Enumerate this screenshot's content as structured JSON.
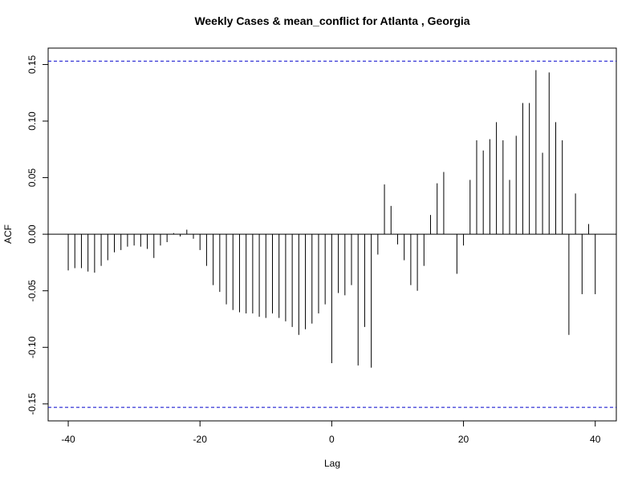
{
  "chart_data": {
    "type": "ccf",
    "title": "Weekly Cases & mean_conflict for Atlanta , Georgia",
    "xlabel": "Lag",
    "ylabel": "ACF",
    "x": [
      -40,
      -39,
      -38,
      -37,
      -36,
      -35,
      -34,
      -33,
      -32,
      -31,
      -30,
      -29,
      -28,
      -27,
      -26,
      -25,
      -24,
      -23,
      -22,
      -21,
      -20,
      -19,
      -18,
      -17,
      -16,
      -15,
      -14,
      -13,
      -12,
      -11,
      -10,
      -9,
      -8,
      -7,
      -6,
      -5,
      -4,
      -3,
      -2,
      -1,
      0,
      1,
      2,
      3,
      4,
      5,
      6,
      7,
      8,
      9,
      10,
      11,
      12,
      13,
      14,
      15,
      16,
      17,
      18,
      19,
      20,
      21,
      22,
      23,
      24,
      25,
      26,
      27,
      28,
      29,
      30,
      31,
      32,
      33,
      34,
      35,
      36,
      37,
      38,
      39,
      40
    ],
    "values": [
      -0.032,
      -0.03,
      -0.03,
      -0.033,
      -0.034,
      -0.028,
      -0.023,
      -0.016,
      -0.014,
      -0.011,
      -0.01,
      -0.011,
      -0.013,
      -0.021,
      -0.01,
      -0.007,
      0.001,
      -0.002,
      0.004,
      -0.004,
      -0.014,
      -0.028,
      -0.045,
      -0.051,
      -0.062,
      -0.067,
      -0.069,
      -0.07,
      -0.07,
      -0.073,
      -0.074,
      -0.07,
      -0.074,
      -0.077,
      -0.082,
      -0.089,
      -0.084,
      -0.079,
      -0.07,
      -0.062,
      -0.114,
      -0.052,
      -0.054,
      -0.045,
      -0.116,
      -0.082,
      -0.118,
      -0.018,
      0.044,
      0.025,
      -0.009,
      -0.023,
      -0.045,
      -0.05,
      -0.028,
      0.017,
      0.045,
      0.055,
      0.0,
      -0.035,
      -0.01,
      0.048,
      0.083,
      0.074,
      0.084,
      0.099,
      0.083,
      0.048,
      0.087,
      0.116,
      0.116,
      0.145,
      0.072,
      0.143,
      0.099,
      0.083,
      -0.089,
      0.036,
      -0.053,
      0.009,
      -0.053
    ],
    "color": "#000000",
    "ci": [
      -0.153,
      0.153
    ],
    "ci_color": "#0000cc",
    "xlim": [
      -43.05,
      43.2
    ],
    "ylim": [
      -0.165,
      0.1645
    ],
    "xticks": [
      -40,
      -20,
      0,
      20,
      40
    ],
    "yticks": [
      -0.15,
      {
        "value": -0.1,
        "label": "-0.10"
      },
      -0.05,
      {
        "value": 0,
        "label": "0.00"
      },
      0.05,
      {
        "value": 0.1,
        "label": "0.10"
      },
      0.15
    ]
  }
}
